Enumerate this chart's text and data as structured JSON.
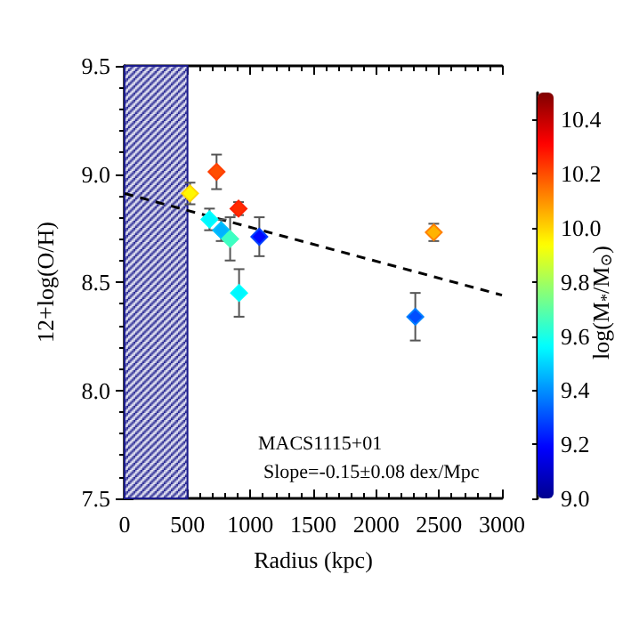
{
  "chart_data": {
    "type": "scatter",
    "xlabel": "Radius (kpc)",
    "ylabel": "12+log(O/H)",
    "clabel": "log(M$_{*}$/M$_{⊙}$)",
    "annotations": [
      "MACS1115+01",
      "Slope=-0.15±0.08 dex/Mpc"
    ],
    "marker": "diamond",
    "grid": false,
    "xlim": [
      0,
      3000
    ],
    "xticks": [
      0,
      500,
      1000,
      1500,
      2000,
      2500,
      3000
    ],
    "ylim": [
      7.5,
      9.5
    ],
    "yticks": [
      {
        "value": 7.5,
        "label": "7.5"
      },
      {
        "value": 8,
        "label": "8.0"
      },
      {
        "value": 8.5,
        "label": "8.5"
      },
      {
        "value": 9,
        "label": "9.0"
      },
      {
        "value": 9.5,
        "label": "9.5"
      }
    ],
    "clim": [
      9.0,
      10.5
    ],
    "cticks": [
      {
        "value": 9,
        "label": "9.0"
      },
      {
        "value": 9.2,
        "label": "9.2"
      },
      {
        "value": 9.4,
        "label": "9.4"
      },
      {
        "value": 9.6,
        "label": "9.6"
      },
      {
        "value": 9.8,
        "label": "9.8"
      },
      {
        "value": 10,
        "label": "10.0"
      },
      {
        "value": 10.2,
        "label": "10.2"
      },
      {
        "value": 10.4,
        "label": "10.4"
      }
    ],
    "bands": [
      {
        "axis": "x",
        "from": 0,
        "to": 500,
        "color": "#1a1a8c"
      }
    ],
    "series": [
      {
        "x": [
          520,
          731,
          906,
          675,
          768,
          839,
          1071,
          910,
          2458,
          2311
        ],
        "values": [
          8.91,
          9.01,
          8.84,
          8.79,
          8.74,
          8.7,
          8.71,
          8.45,
          8.73,
          8.34
        ],
        "errors": [
          0.05,
          0.08,
          0.03,
          0.05,
          0.05,
          0.1,
          0.09,
          0.11,
          0.04,
          0.11
        ],
        "cvalues": [
          9.95,
          10.2,
          10.25,
          9.55,
          9.45,
          9.65,
          9.2,
          9.55,
          10.05,
          9.3
        ],
        "colors": [
          "#ffd700",
          "#ff4000",
          "#ff2000",
          "#00ffff",
          "#00c0ff",
          "#40ffc0",
          "#0040ff",
          "#00ffff",
          "#ff8000",
          "#0080ff"
        ]
      },
      {
        "type": "line",
        "x": [
          0,
          3000
        ],
        "values": [
          8.91,
          8.44
        ],
        "color": "#000000",
        "line_style": "dashed",
        "marker": "none"
      }
    ]
  }
}
